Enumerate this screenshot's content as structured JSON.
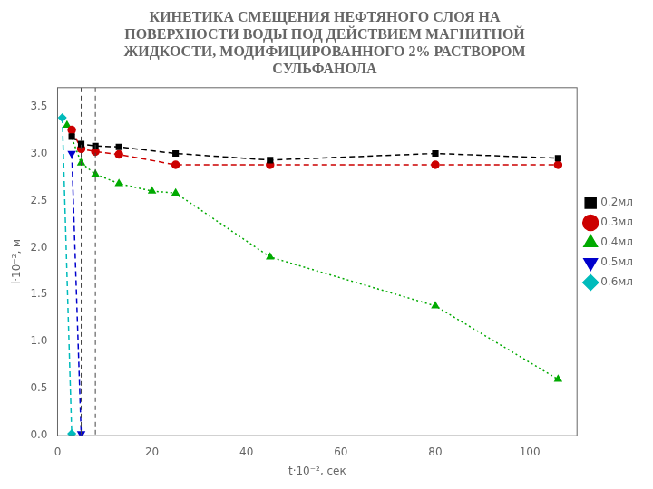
{
  "chart_data": {
    "type": "line",
    "title": [
      "КИНЕТИКА СМЕЩЕНИЯ НЕФТЯНОГО СЛОЯ НА",
      "ПОВЕРХНОСТИ ВОДЫ ПОД ДЕЙСТВИЕМ МАГНИТНОЙ",
      "ЖИДКОСТИ, МОДИФИЦИРОВАННОГО 2% РАСТВОРОМ",
      "СУЛЬФАНОЛА"
    ],
    "x_label": "t·10⁻², сек",
    "y_label": "l·10⁻², м",
    "xlim": [
      0,
      110
    ],
    "xticks": [
      0,
      20,
      40,
      60,
      80,
      100
    ],
    "ylim": [
      0.0,
      3.7
    ],
    "yticks": [
      {
        "value": 0.0,
        "label": "0.0"
      },
      0.5,
      {
        "value": 1.0,
        "label": "1.0"
      },
      1.5,
      {
        "value": 2.0,
        "label": "2.0"
      },
      2.5,
      {
        "value": 3.0,
        "label": "3.0"
      },
      3.5
    ],
    "grid": false,
    "legend": "right",
    "vlines": [
      5,
      8
    ],
    "series": [
      {
        "name": "0.2мл",
        "color": "#000000",
        "marker": "square",
        "line_style": "dashed",
        "x": [
          3,
          5,
          8,
          13,
          25,
          45,
          80,
          106
        ],
        "values": [
          3.18,
          3.1,
          3.08,
          3.07,
          3.0,
          2.93,
          3.0,
          2.95
        ]
      },
      {
        "name": "0.3мл",
        "color": "#cc0000",
        "marker": "circle",
        "line_style": "dashed",
        "x": [
          3,
          5,
          8,
          13,
          25,
          45,
          80,
          106
        ],
        "values": [
          3.25,
          3.05,
          3.02,
          2.99,
          2.88,
          2.88,
          2.88,
          2.88
        ]
      },
      {
        "name": "0.4мл",
        "color": "#00aa00",
        "marker": "triangle",
        "line_style": "dotted",
        "x": [
          2,
          5,
          8,
          13,
          20,
          25,
          45,
          80,
          106
        ],
        "values": [
          3.3,
          2.9,
          2.78,
          2.68,
          2.6,
          2.58,
          1.9,
          1.38,
          0.6
        ]
      },
      {
        "name": "0.5мл",
        "color": "#0000cc",
        "marker": "triangle_down",
        "line_style": "dashed",
        "x": [
          3,
          5
        ],
        "values": [
          3.0,
          0.02
        ]
      },
      {
        "name": "0.6мл",
        "color": "#00bbbb",
        "marker": "diamond",
        "line_style": "dashed",
        "x": [
          1,
          3
        ],
        "values": [
          3.38,
          0.02
        ]
      }
    ]
  }
}
